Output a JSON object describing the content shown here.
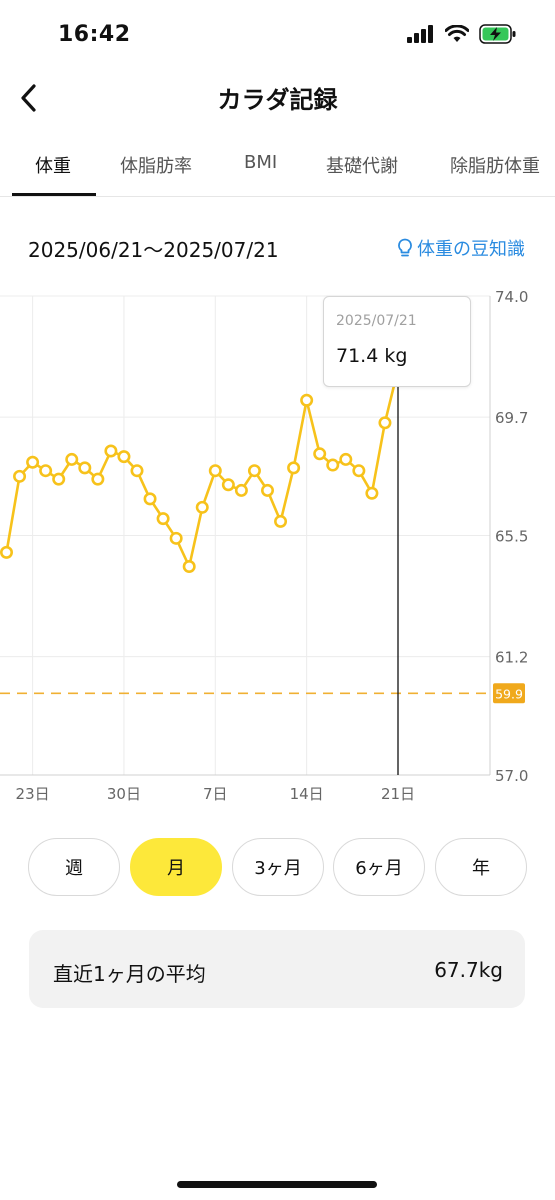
{
  "status_bar": {
    "time": "16:42"
  },
  "nav": {
    "title": "カラダ記録",
    "back_icon": "chevron-left-icon"
  },
  "tabs": [
    {
      "label": "体重",
      "active": true
    },
    {
      "label": "体脂肪率",
      "active": false
    },
    {
      "label": "BMI",
      "active": false
    },
    {
      "label": "基礎代謝",
      "active": false
    },
    {
      "label": "除脂肪体重",
      "active": false
    }
  ],
  "range_label": "2025/06/21〜2025/07/21",
  "tip_link": {
    "label": "体重の豆知識",
    "icon": "lightbulb-icon"
  },
  "tooltip": {
    "date": "2025/07/21",
    "value": "71.4 kg"
  },
  "colors": {
    "accent": "#f7c21b",
    "active_button": "#fde83a",
    "link": "#2a8be0",
    "target_label_bg": "#f0a91c"
  },
  "chart_data": {
    "type": "line",
    "y_ticks": [
      "74.0",
      "69.7",
      "65.5",
      "61.2",
      "57.0"
    ],
    "ylim": [
      57.0,
      74.0
    ],
    "x_tick_labels": [
      {
        "label": "23日",
        "date": "2025-06-23"
      },
      {
        "label": "30日",
        "date": "2025-06-30"
      },
      {
        "label": "7日",
        "date": "2025-07-07"
      },
      {
        "label": "14日",
        "date": "2025-07-14"
      },
      {
        "label": "21日",
        "date": "2025-07-21"
      }
    ],
    "target_line": {
      "value": 59.9,
      "label": "59.9"
    },
    "series": [
      {
        "points": [
          {
            "date": "2025-06-21",
            "value": 64.9
          },
          {
            "date": "2025-06-22",
            "value": 67.6
          },
          {
            "date": "2025-06-23",
            "value": 68.1
          },
          {
            "date": "2025-06-24",
            "value": 67.8
          },
          {
            "date": "2025-06-25",
            "value": 67.5
          },
          {
            "date": "2025-06-26",
            "value": 68.2
          },
          {
            "date": "2025-06-27",
            "value": 67.9
          },
          {
            "date": "2025-06-28",
            "value": 67.5
          },
          {
            "date": "2025-06-29",
            "value": 68.5
          },
          {
            "date": "2025-06-30",
            "value": 68.3
          },
          {
            "date": "2025-07-01",
            "value": 67.8
          },
          {
            "date": "2025-07-02",
            "value": 66.8
          },
          {
            "date": "2025-07-03",
            "value": 66.1
          },
          {
            "date": "2025-07-04",
            "value": 65.4
          },
          {
            "date": "2025-07-05",
            "value": 64.4
          },
          {
            "date": "2025-07-06",
            "value": 66.5
          },
          {
            "date": "2025-07-07",
            "value": 67.8
          },
          {
            "date": "2025-07-08",
            "value": 67.3
          },
          {
            "date": "2025-07-09",
            "value": 67.1
          },
          {
            "date": "2025-07-10",
            "value": 67.8
          },
          {
            "date": "2025-07-11",
            "value": 67.1
          },
          {
            "date": "2025-07-12",
            "value": 66.0
          },
          {
            "date": "2025-07-13",
            "value": 67.9
          },
          {
            "date": "2025-07-14",
            "value": 70.3
          },
          {
            "date": "2025-07-15",
            "value": 68.4
          },
          {
            "date": "2025-07-16",
            "value": 68.0
          },
          {
            "date": "2025-07-17",
            "value": 68.2
          },
          {
            "date": "2025-07-18",
            "value": 67.8
          },
          {
            "date": "2025-07-19",
            "value": 67.0
          },
          {
            "date": "2025-07-20",
            "value": 69.5
          },
          {
            "date": "2025-07-21",
            "value": 71.4
          }
        ]
      }
    ],
    "selected_date": "2025-07-21"
  },
  "period_buttons": [
    {
      "label": "週",
      "active": false
    },
    {
      "label": "月",
      "active": true
    },
    {
      "label": "3ヶ月",
      "active": false
    },
    {
      "label": "6ヶ月",
      "active": false
    },
    {
      "label": "年",
      "active": false
    }
  ],
  "average": {
    "label": "直近1ヶ月の平均",
    "value": "67.7kg"
  }
}
